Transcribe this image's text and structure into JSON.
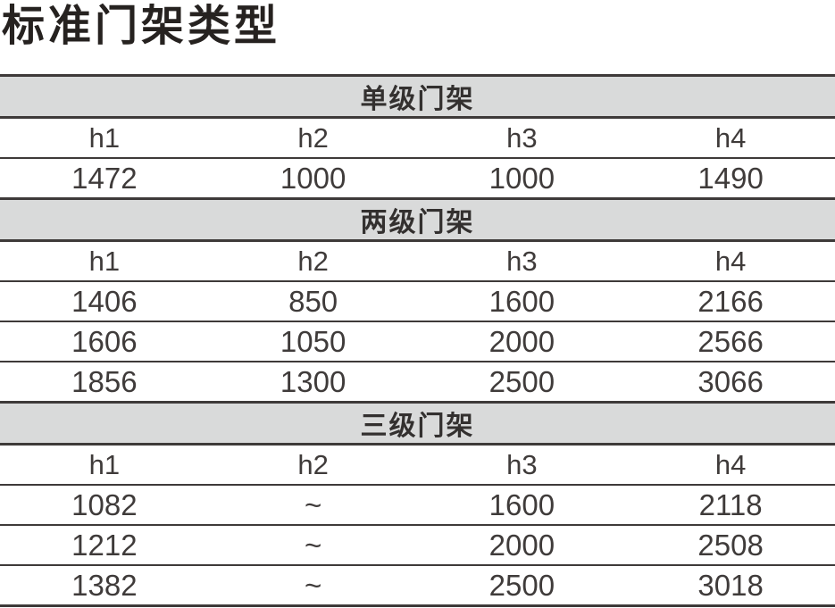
{
  "page": {
    "title": "标准门架类型"
  },
  "colors": {
    "band_background": "#d9dada",
    "line": "#3e3a39",
    "text": "#3f3b3a",
    "title_text": "#262220"
  },
  "table": {
    "sections": [
      {
        "label": "单级门架",
        "headers": [
          "h1",
          "h2",
          "h3",
          "h4"
        ],
        "rows": [
          [
            "1472",
            "1000",
            "1000",
            "1490"
          ]
        ]
      },
      {
        "label": "两级门架",
        "headers": [
          "h1",
          "h2",
          "h3",
          "h4"
        ],
        "rows": [
          [
            "1406",
            "850",
            "1600",
            "2166"
          ],
          [
            "1606",
            "1050",
            "2000",
            "2566"
          ],
          [
            "1856",
            "1300",
            "2500",
            "3066"
          ]
        ]
      },
      {
        "label": "三级门架",
        "headers": [
          "h1",
          "h2",
          "h3",
          "h4"
        ],
        "rows": [
          [
            "1082",
            "~",
            "1600",
            "2118"
          ],
          [
            "1212",
            "~",
            "2000",
            "2508"
          ],
          [
            "1382",
            "~",
            "2500",
            "3018"
          ]
        ]
      }
    ]
  }
}
